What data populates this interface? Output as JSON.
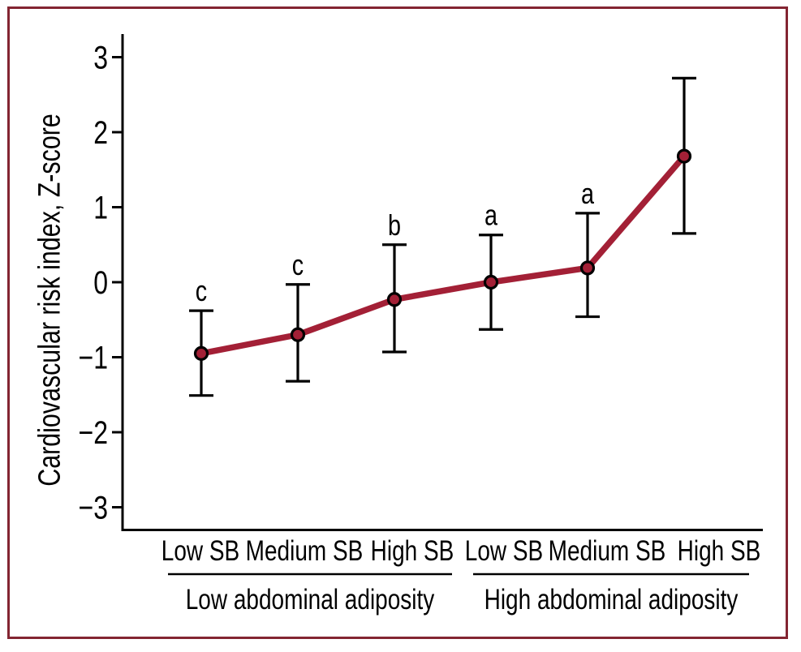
{
  "figure": {
    "frame_color": "#832532",
    "background_color": "#ffffff",
    "axis_color": "#000000"
  },
  "chart_data": {
    "type": "line",
    "title": "",
    "xlabel": "",
    "ylabel": "Cardiovascular risk index, Z-score",
    "ylim": [
      -3.6,
      3.6
    ],
    "yticks": [
      3,
      2,
      1,
      0,
      -1,
      -2,
      -3
    ],
    "ytick_labels": [
      "3",
      "2",
      "1",
      "0",
      "−1",
      "−2",
      "−3"
    ],
    "grid": false,
    "legend_position": "none",
    "error_bars": true,
    "groups": [
      {
        "label": "Low abdominal adiposity",
        "categories": [
          "Low SB",
          "Medium SB",
          "High SB"
        ]
      },
      {
        "label": "High abdominal adiposity",
        "categories": [
          "Low SB",
          "Medium SB",
          "High SB"
        ]
      }
    ],
    "series": [
      {
        "name": "Cardiovascular risk index, Z-score",
        "color": "#A32036",
        "marker_fill": "#A32036",
        "marker_stroke": "#000000",
        "points": [
          {
            "group": "Low abdominal adiposity",
            "category": "Low SB",
            "mean": -0.95,
            "ci_low": -1.51,
            "ci_high": -0.38,
            "letter": "c"
          },
          {
            "group": "Low abdominal adiposity",
            "category": "Medium SB",
            "mean": -0.7,
            "ci_low": -1.32,
            "ci_high": -0.03,
            "letter": "c"
          },
          {
            "group": "Low abdominal adiposity",
            "category": "High SB",
            "mean": -0.23,
            "ci_low": -0.93,
            "ci_high": 0.5,
            "letter": "b"
          },
          {
            "group": "High abdominal adiposity",
            "category": "Low SB",
            "mean": 0.0,
            "ci_low": -0.63,
            "ci_high": 0.63,
            "letter": "a"
          },
          {
            "group": "High abdominal adiposity",
            "category": "Medium SB",
            "mean": 0.19,
            "ci_low": -0.46,
            "ci_high": 0.92,
            "letter": "a"
          },
          {
            "group": "High abdominal adiposity",
            "category": "High SB",
            "mean": 1.68,
            "ci_low": 0.65,
            "ci_high": 2.72,
            "letter": ""
          }
        ]
      }
    ]
  }
}
